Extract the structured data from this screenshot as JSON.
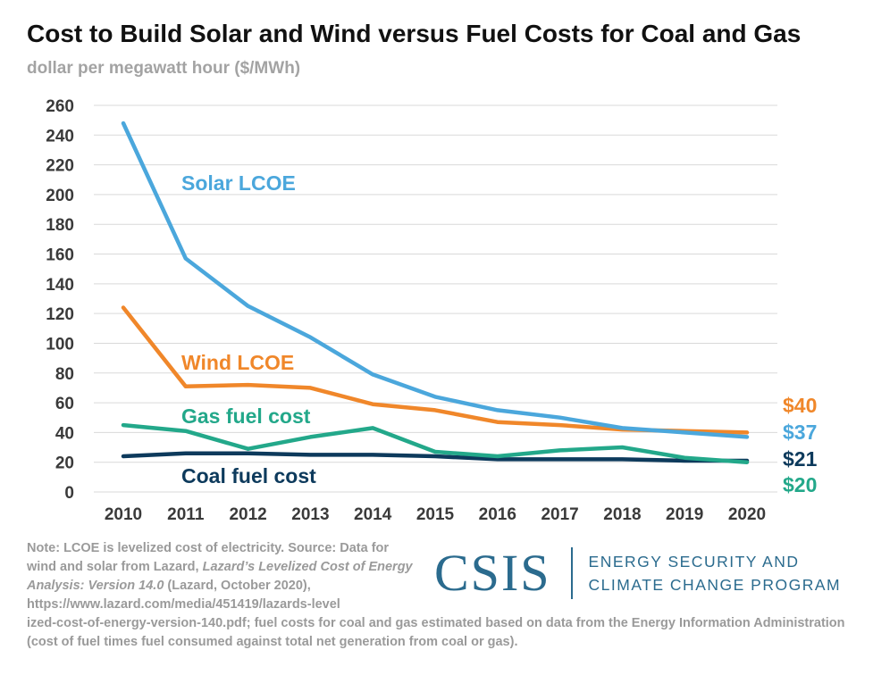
{
  "title": "Cost to Build Solar and Wind versus Fuel Costs for Coal and Gas",
  "subtitle": "dollar per megawatt hour ($/MWh)",
  "colors": {
    "solar": "#4ba7dc",
    "wind": "#f0872a",
    "gas": "#23a88a",
    "coal": "#0d3a5c",
    "grid": "#d9d9d9",
    "axis_text": "#3a3a3a"
  },
  "chart_data": {
    "type": "line",
    "title": "Cost to Build Solar and Wind versus Fuel Costs for Coal and Gas",
    "ylabel": "dollar per megawatt hour ($/MWh)",
    "xlabel": "",
    "x": [
      "2010",
      "2011",
      "2012",
      "2013",
      "2014",
      "2015",
      "2016",
      "2017",
      "2018",
      "2019",
      "2020"
    ],
    "ylim": [
      0,
      260
    ],
    "yticks": [
      0,
      20,
      40,
      60,
      80,
      100,
      120,
      140,
      160,
      180,
      200,
      220,
      240,
      260
    ],
    "grid": true,
    "series": [
      {
        "name": "Solar LCOE",
        "color": "#4ba7dc",
        "values": [
          248,
          157,
          125,
          104,
          79,
          64,
          55,
          50,
          43,
          40,
          37
        ],
        "end_label": "$37"
      },
      {
        "name": "Wind LCOE",
        "color": "#f0872a",
        "values": [
          124,
          71,
          72,
          70,
          59,
          55,
          47,
          45,
          42,
          41,
          40
        ],
        "end_label": "$40"
      },
      {
        "name": "Gas fuel cost",
        "color": "#23a88a",
        "values": [
          45,
          41,
          29,
          37,
          43,
          27,
          24,
          28,
          30,
          23,
          20
        ],
        "end_label": "$20"
      },
      {
        "name": "Coal fuel cost",
        "color": "#0d3a5c",
        "values": [
          24,
          26,
          26,
          25,
          25,
          24,
          22,
          22,
          22,
          21,
          21
        ],
        "end_label": "$21"
      }
    ]
  },
  "note": {
    "text_main": "Note: LCOE is levelized cost of electricity. Source: Data for wind and solar from Lazard, ",
    "text_italic": "Lazard’s Levelized Cost of Energy Analysis: Version 14.0",
    "text_after": " (Lazard, October 2020), https://www.lazard.com/media/451419/lazards-level",
    "text_tail": "ized-cost-of-energy-version-140.pdf; fuel costs for coal and gas estimated based on data from the Energy Information Administration (cost of fuel times fuel consumed against total net generation from coal or gas)."
  },
  "logo": {
    "mark": "CSIS",
    "line1": "ENERGY SECURITY AND",
    "line2": "CLIMATE CHANGE PROGRAM"
  }
}
